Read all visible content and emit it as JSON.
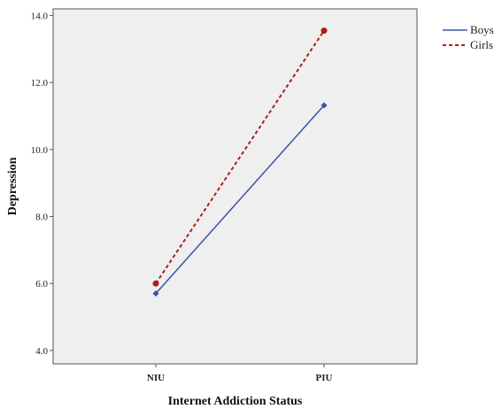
{
  "chart_data": {
    "type": "line",
    "title": "",
    "xlabel": "Internet Addiction Status",
    "ylabel": "Depression",
    "categories": [
      "NIU",
      "PIU"
    ],
    "ylim": [
      3.6,
      14.2
    ],
    "yticks": [
      4.0,
      6.0,
      8.0,
      10.0,
      12.0,
      14.0
    ],
    "ytick_labels": [
      "4.0",
      "6.0",
      "8.0",
      "10.0",
      "12.0",
      "14.0"
    ],
    "grid": false,
    "legend_position": "right-top, outside plot",
    "series": [
      {
        "name": "Boys",
        "values": [
          5.7,
          11.32
        ],
        "color": "#3a53a4",
        "line_style": "solid",
        "marker": "diamond"
      },
      {
        "name": "Girls",
        "values": [
          6.0,
          13.55
        ],
        "color": "#b01c1c",
        "line_style": "dashed",
        "marker": "circle"
      }
    ]
  },
  "style": {
    "plot_background": "#efefef",
    "axis_color": "#555555"
  }
}
